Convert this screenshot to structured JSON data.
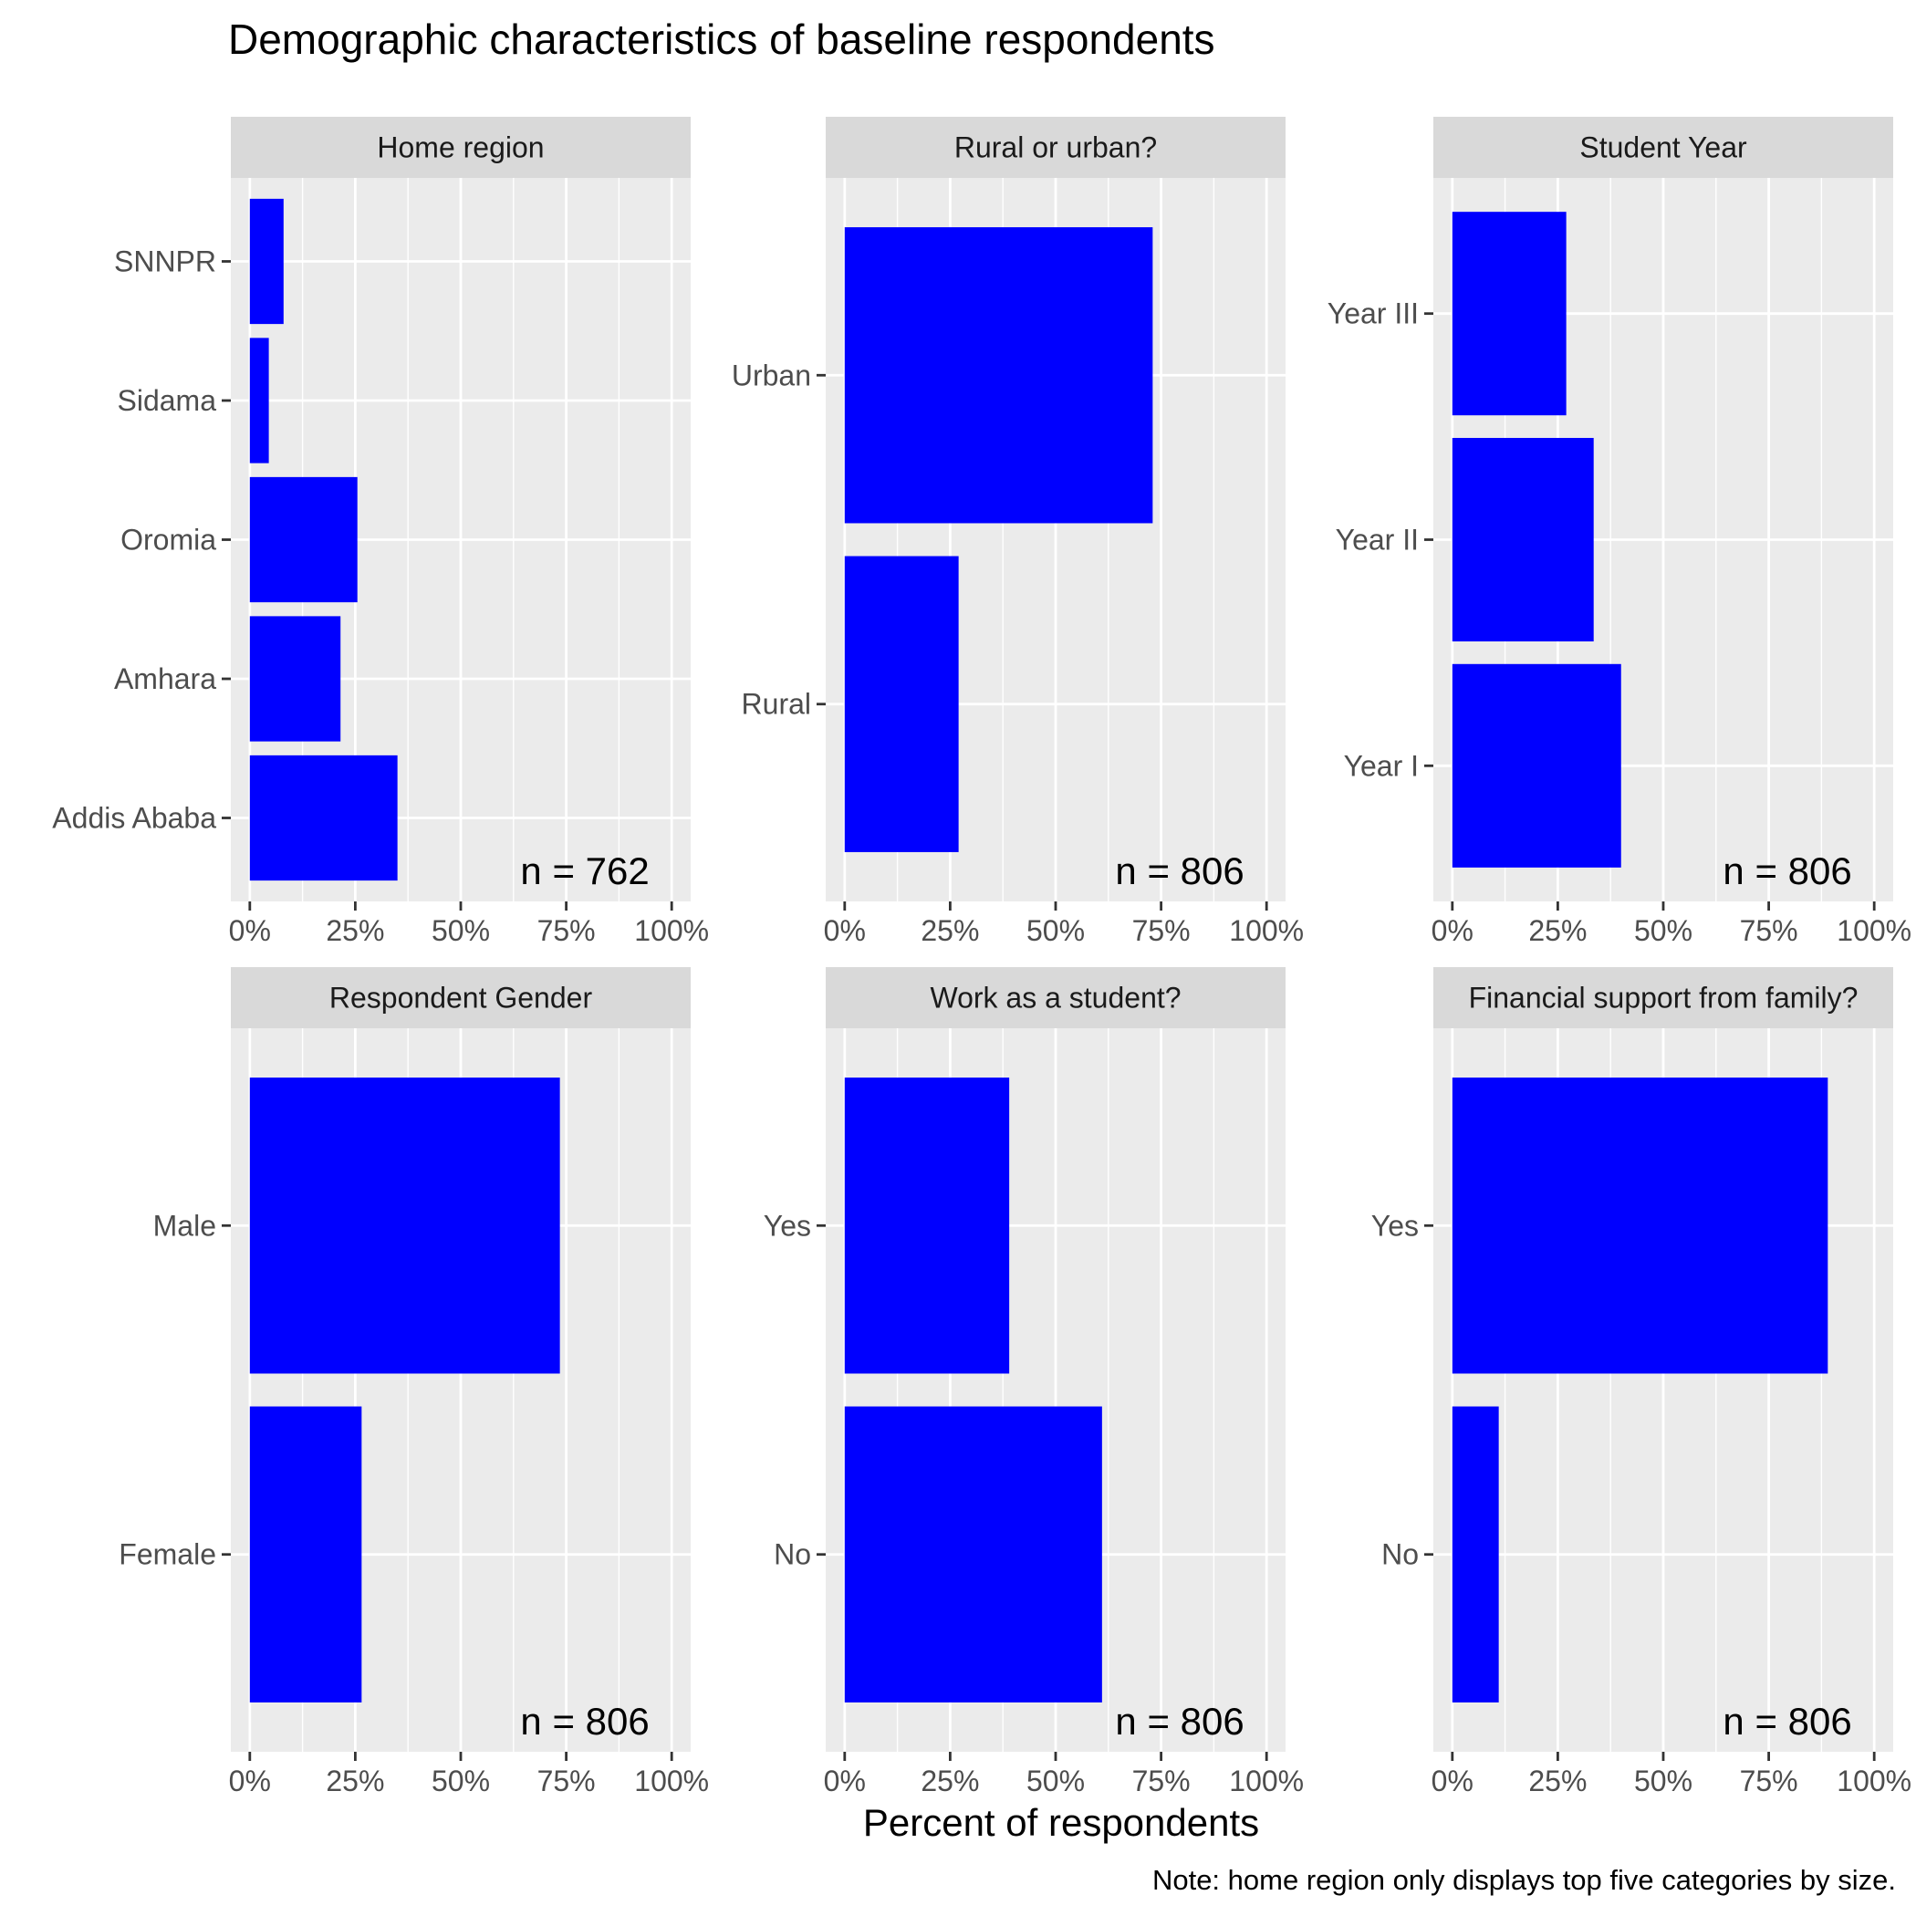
{
  "chart_data": {
    "type": "bar",
    "orientation": "horizontal",
    "title": "Demographic characteristics of baseline respondents",
    "xlabel": "Percent of respondents",
    "caption": "Note: home region only displays top five categories by size.",
    "xlim": [
      0,
      100
    ],
    "x_ticks": [
      "0%",
      "25%",
      "50%",
      "75%",
      "100%"
    ],
    "bar_color": "#0000ff",
    "panel_bg": "#ebebeb",
    "strip_bg": "#d9d9d9",
    "grid": true,
    "panels": [
      {
        "label": "Home region",
        "n_label": "n = 762",
        "categories": [
          "Addis Ababa",
          "Amhara",
          "Oromia",
          "Sidama",
          "SNNPR"
        ],
        "values": [
          35,
          21.5,
          25.5,
          4.5,
          8
        ]
      },
      {
        "label": "Rural or urban?",
        "n_label": "n = 806",
        "categories": [
          "Rural",
          "Urban"
        ],
        "values": [
          27,
          73
        ]
      },
      {
        "label": "Student Year",
        "n_label": "n = 806",
        "categories": [
          "Year I",
          "Year II",
          "Year III"
        ],
        "values": [
          40,
          33.5,
          27
        ]
      },
      {
        "label": "Respondent Gender",
        "n_label": "n = 806",
        "categories": [
          "Female",
          "Male"
        ],
        "values": [
          26.5,
          73.5
        ]
      },
      {
        "label": "Work as a student?",
        "n_label": "n = 806",
        "categories": [
          "No",
          "Yes"
        ],
        "values": [
          61,
          39
        ]
      },
      {
        "label": "Financial support from family?",
        "n_label": "n = 806",
        "categories": [
          "No",
          "Yes"
        ],
        "values": [
          11,
          89
        ]
      }
    ]
  }
}
